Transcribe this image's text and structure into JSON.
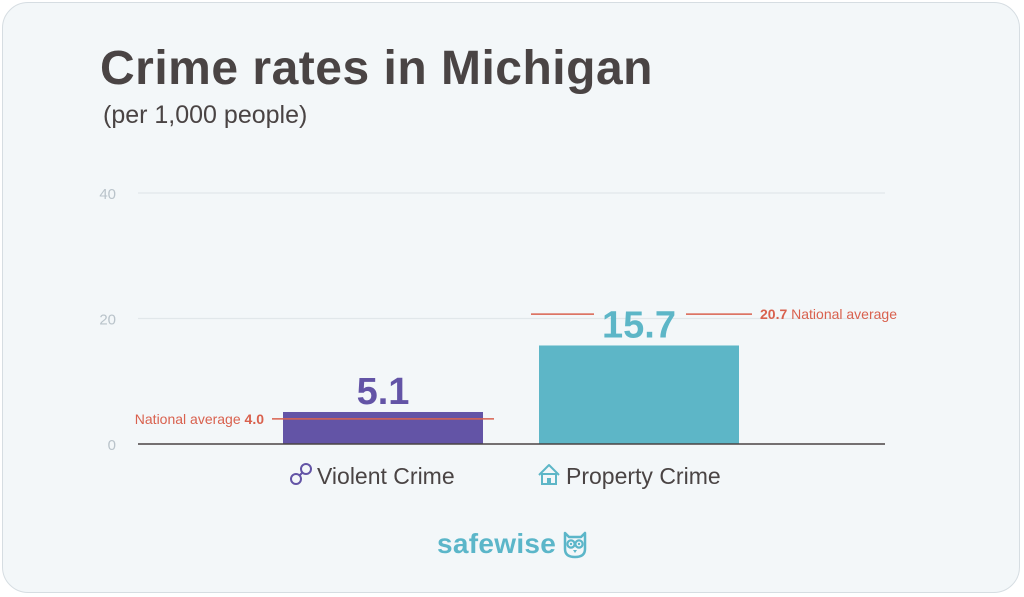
{
  "title": "Crime rates in Michigan",
  "subtitle": "(per 1,000 people)",
  "brand": {
    "name": "safewise",
    "logo_icon": "owl-icon"
  },
  "colors": {
    "violent": "#6354a6",
    "property": "#5db6c7",
    "national_line": "#d9614e",
    "title": "#4a4444",
    "grid": "#e1e7ea",
    "tick": "#b9c3ca",
    "axis": "#4a4444"
  },
  "chart_data": {
    "type": "bar",
    "categories": [
      "Violent Crime",
      "Property Crime"
    ],
    "category_icons": [
      "handcuffs-icon",
      "house-icon"
    ],
    "values": [
      5.1,
      15.7
    ],
    "value_labels": [
      "5.1",
      "15.7"
    ],
    "national_average": [
      4.0,
      20.7
    ],
    "national_average_labels": [
      {
        "text": "National average",
        "value": "4.0"
      },
      {
        "value": "20.7",
        "text": "National average"
      }
    ],
    "yticks": [
      0,
      20,
      40
    ],
    "ytick_labels": [
      "0",
      "20",
      "40"
    ],
    "ylim": [
      0,
      40
    ],
    "grid": true,
    "title": "Crime rates in Michigan",
    "subtitle": "(per 1,000 people)"
  }
}
